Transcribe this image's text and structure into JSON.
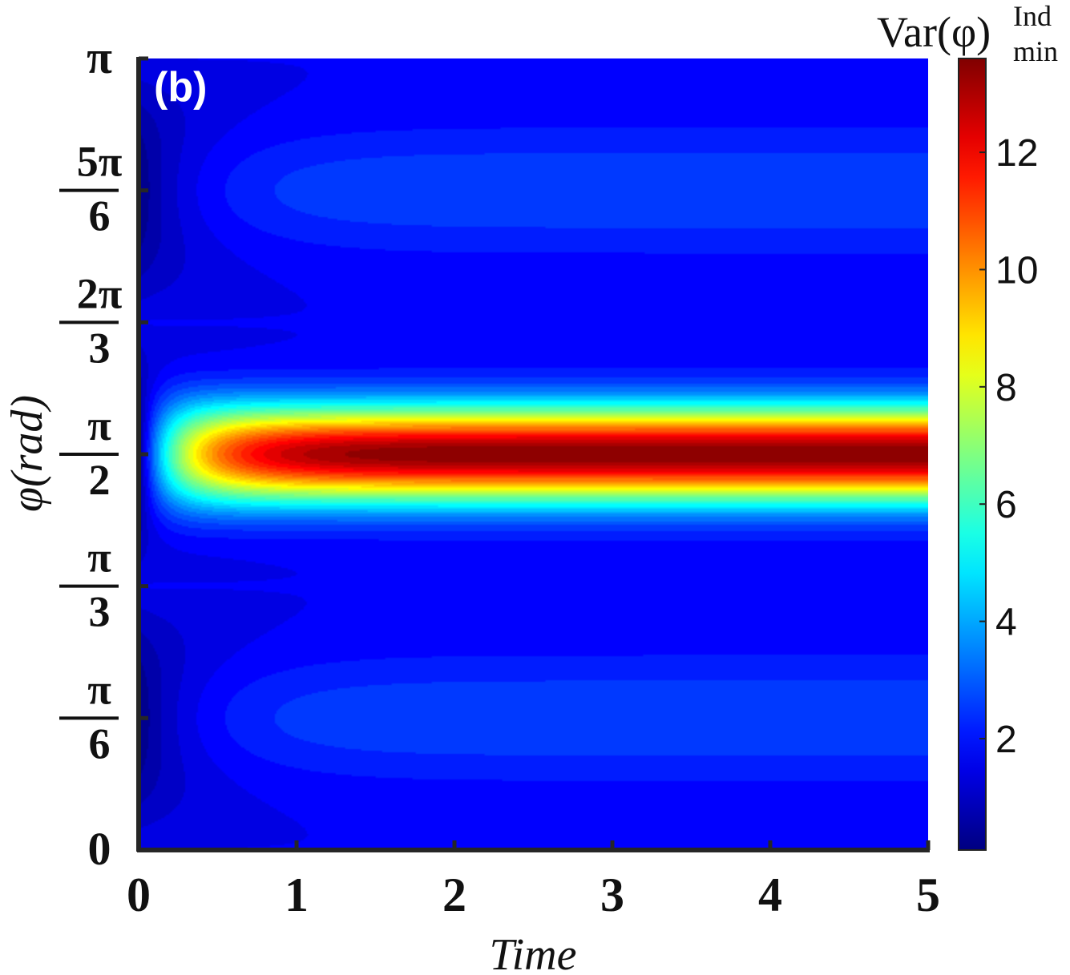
{
  "chart_data": {
    "type": "heatmap",
    "panel_label": "(b)",
    "xlabel": "Time",
    "ylabel": "φ(rad)",
    "xlim": [
      0,
      5
    ],
    "ylim_rad": [
      0,
      3.14159
    ],
    "x_ticks": [
      "0",
      "1",
      "2",
      "3",
      "4",
      "5"
    ],
    "y_ticks": [
      {
        "value": 0,
        "numerator": "0",
        "denominator": ""
      },
      {
        "value": 0.5236,
        "numerator": "π",
        "denominator": "6"
      },
      {
        "value": 1.0472,
        "numerator": "π",
        "denominator": "3"
      },
      {
        "value": 1.5708,
        "numerator": "π",
        "denominator": "2"
      },
      {
        "value": 2.0944,
        "numerator": "2π",
        "denominator": "3"
      },
      {
        "value": 2.618,
        "numerator": "5π",
        "denominator": "6"
      },
      {
        "value": 3.1416,
        "numerator": "π",
        "denominator": ""
      }
    ],
    "colorbar": {
      "title_main": "Var(φ)",
      "title_sup": "Ind",
      "title_sub": "min",
      "range": [
        0.1,
        13.6
      ],
      "ticks": [
        "2",
        "4",
        "6",
        "8",
        "10",
        "12"
      ],
      "colormap": "jet"
    },
    "features": {
      "peak_location_phi": 1.5708,
      "peak_value": 13.6,
      "secondary_bands_phi": [
        0.5236,
        2.618
      ],
      "secondary_band_value": 2.7,
      "background_value": 1.6,
      "minimum_value": 0.1
    }
  }
}
